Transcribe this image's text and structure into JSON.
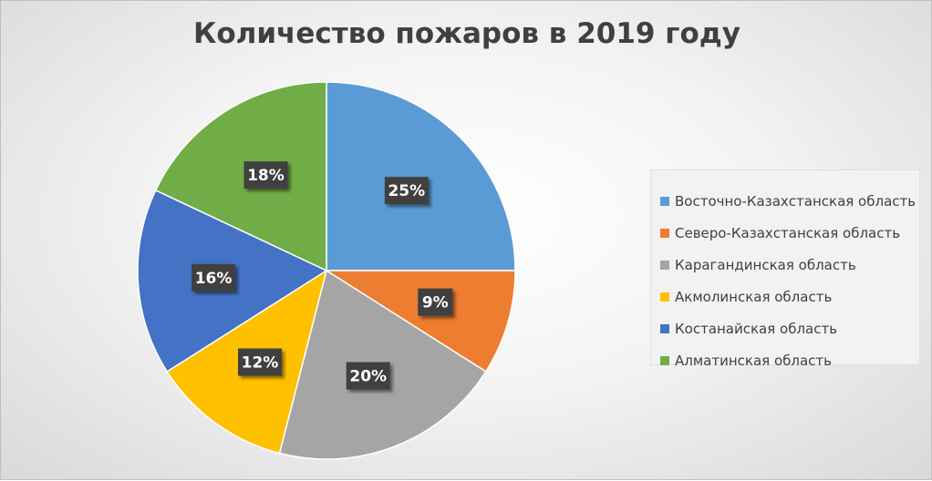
{
  "chart_data": {
    "type": "pie",
    "title": "Количество пожаров в 2019 году",
    "legend_position": "right",
    "slices": [
      {
        "label": "Восточно-Казахстанская область",
        "value": 25,
        "display": "25%",
        "color": "#5b9bd5"
      },
      {
        "label": "Северо-Казахстанская область",
        "value": 9,
        "display": "9%",
        "color": "#ed7d31"
      },
      {
        "label": "Карагандинская область",
        "value": 20,
        "display": "20%",
        "color": "#a5a5a5"
      },
      {
        "label": "Акмолинская область",
        "value": 12,
        "display": "12%",
        "color": "#ffc000"
      },
      {
        "label": "Костанайская область",
        "value": 16,
        "display": "16%",
        "color": "#4472c4"
      },
      {
        "label": "Алматинская область",
        "value": 18,
        "display": "18%",
        "color": "#70ad47"
      }
    ],
    "data_label_style": {
      "background": "#404040",
      "text_color": "#ffffff"
    }
  }
}
